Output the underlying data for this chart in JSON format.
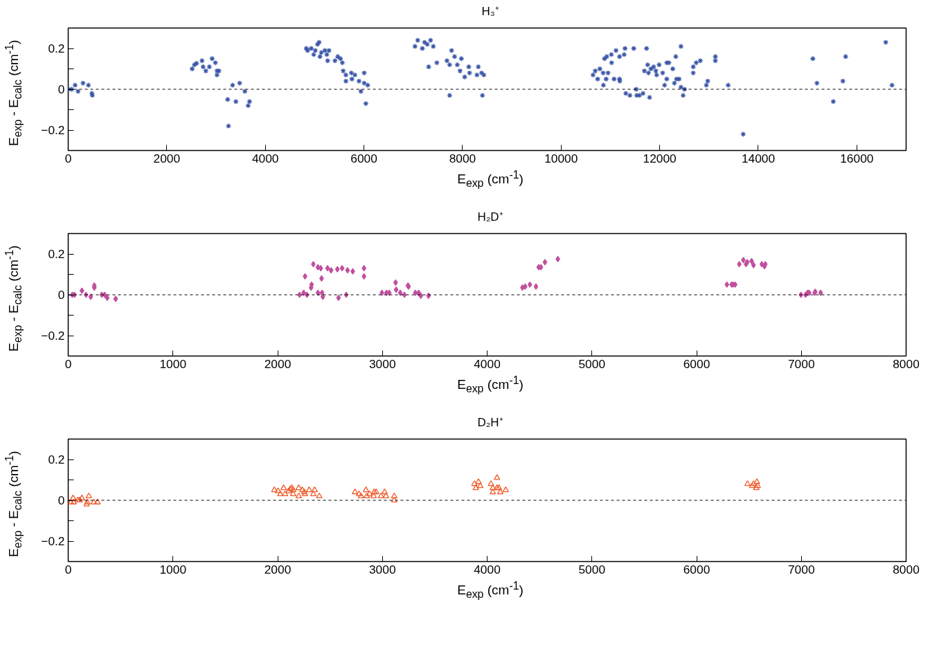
{
  "chart_data": [
    {
      "type": "scatter",
      "title": "H₃⁺",
      "xlabel": "E$_{exp}$ (cm$^{-1}$)",
      "ylabel": "E$_{exp}$ - E$_{calc}$ (cm$^{-1}$)",
      "marker": "cross",
      "grid": false,
      "xlim": [
        0,
        17000
      ],
      "xticks": [
        0,
        2000,
        4000,
        6000,
        8000,
        10000,
        12000,
        14000,
        16000
      ],
      "ylim": [
        -0.3,
        0.3
      ],
      "yticks": [
        {
          "value": -0.3,
          "label": null
        },
        -0.2,
        {
          "value": -0.1,
          "label": null
        },
        0,
        {
          "value": 0.1,
          "label": null
        },
        0.2,
        {
          "value": 0.3,
          "label": null
        }
      ],
      "ref_lines": [
        {
          "axis": "y",
          "value": 0,
          "color": "#000000",
          "line_style": "dashed"
        }
      ],
      "series": [
        {
          "color": "#3a56a8",
          "x": [
            0,
            70,
            140,
            200,
            300,
            410,
            480,
            490,
            2515,
            2560,
            2604,
            2715,
            2737,
            2792,
            2864,
            2920,
            2986,
            3019,
            3058,
            3019,
            3235,
            3252,
            3335,
            3402,
            3479,
            3584,
            3651,
            3679,
            4831,
            4859,
            4931,
            4981,
            5014,
            5058,
            5091,
            5108,
            5136,
            5208,
            5247,
            5263,
            5291,
            5413,
            5468,
            5523,
            5562,
            5579,
            5634,
            5634,
            5745,
            5756,
            5817,
            5900,
            5939,
            6005,
            6005,
            6039,
            6077,
            7036,
            7091,
            7185,
            7230,
            7285,
            7352,
            7407,
            7313,
            7479,
            7684,
            7739,
            7739,
            7778,
            7839,
            7894,
            7977,
            7950,
            8044,
            8127,
            8143,
            8293,
            8321,
            8387,
            8404,
            8432,
            10648,
            10693,
            10742,
            10787,
            10853,
            10859,
            10881,
            10925,
            10914,
            10953,
            11020,
            11025,
            11075,
            11114,
            11186,
            11186,
            11191,
            11280,
            11297,
            11474,
            11313,
            11396,
            11524,
            11535,
            11590,
            11662,
            11734,
            11795,
            11690,
            11756,
            11773,
            11823,
            11878,
            11922,
            11939,
            11989,
            12061,
            12100,
            12144,
            12144,
            12188,
            12266,
            12299,
            12327,
            12343,
            12393,
            12432,
            12432,
            12476,
            12504,
            12681,
            12681,
            12742,
            12825,
            12947,
            12975,
            13130,
            13130,
            13390,
            13695,
            15108,
            15191,
            15523,
            15717,
            15773,
            16587,
            16714
          ],
          "values": [
            0,
            0,
            0.02,
            -0.01,
            0.03,
            0.02,
            -0.02,
            -0.03,
            0.1,
            0.12,
            0.127,
            0.14,
            0.11,
            0.09,
            0.11,
            0.15,
            0.13,
            0.09,
            0.09,
            0.07,
            -0.05,
            -0.18,
            0.02,
            -0.06,
            0.03,
            -0.01,
            -0.08,
            -0.06,
            0.2,
            0.19,
            0.2,
            0.17,
            0.19,
            0.22,
            0.23,
            0.16,
            0.18,
            0.19,
            0.17,
            0.14,
            0.19,
            0.14,
            0.16,
            0.15,
            0.13,
            0.09,
            0.07,
            0.04,
            0.08,
            0.05,
            0.07,
            0.04,
            -0.01,
            0.08,
            0.03,
            -0.07,
            0.02,
            0.21,
            0.24,
            0.2,
            0.23,
            0.22,
            0.24,
            0.21,
            0.11,
            0.13,
            0.14,
            -0.03,
            0.12,
            0.19,
            0.16,
            0.12,
            0.15,
            0.09,
            0.06,
            0.11,
            0.08,
            0.07,
            0.11,
            0.08,
            -0.03,
            0.07,
            0.07,
            0.09,
            0.05,
            0.1,
            0.08,
            0.02,
            0.15,
            0.16,
            0.05,
            0.08,
            0.17,
            0.13,
            0.05,
            0.19,
            0.16,
            0.05,
            0.04,
            0.17,
            0.2,
            0.2,
            -0.02,
            -0.03,
            0,
            -0.03,
            -0.03,
            -0.02,
            0.2,
            -0.04,
            0.09,
            0.12,
            0.08,
            0.1,
            0.11,
            0.09,
            0.07,
            0.12,
            0.08,
            0.02,
            0.05,
            0.13,
            0.13,
            0.1,
            0.03,
            0.16,
            0.05,
            0.05,
            0.21,
            0.01,
            -0.03,
            0,
            0.11,
            0.08,
            0.13,
            0.14,
            0.02,
            0.04,
            0.16,
            0.14,
            0.02,
            -0.22,
            0.15,
            0.03,
            -0.06,
            0.04,
            0.16,
            0.23,
            0.02
          ]
        }
      ]
    },
    {
      "type": "scatter",
      "title": "H₂D⁺",
      "xlabel": "E$_{exp}$ (cm$^{-1}$)",
      "ylabel": "E$_{exp}$ - E$_{calc}$ (cm$^{-1}$)",
      "marker": "diamond",
      "grid": false,
      "xlim": [
        0,
        8000
      ],
      "xticks": [
        0,
        1000,
        2000,
        3000,
        4000,
        5000,
        6000,
        7000,
        8000
      ],
      "ylim": [
        -0.3,
        0.3
      ],
      "yticks": [
        {
          "value": -0.3,
          "label": null
        },
        -0.2,
        {
          "value": -0.1,
          "label": null
        },
        0,
        {
          "value": 0.1,
          "label": null
        },
        0.2,
        {
          "value": 0.3,
          "label": null
        }
      ],
      "ref_lines": [
        {
          "axis": "y",
          "value": 0,
          "color": "#000000",
          "line_style": "dashed"
        }
      ],
      "series": [
        {
          "color": "#c0509f",
          "x": [
            39,
            60,
            131,
            170,
            215,
            249,
            249,
            320,
            348,
            372,
            453,
            2209,
            2248,
            2261,
            2279,
            2319,
            2324,
            2340,
            2384,
            2384,
            2411,
            2419,
            2424,
            2431,
            2476,
            2510,
            2570,
            2581,
            2615,
            2654,
            2667,
            2717,
            2824,
            2824,
            2995,
            3039,
            3065,
            3126,
            3131,
            3170,
            3210,
            3244,
            3249,
            3314,
            3346,
            3367,
            3440,
            4337,
            4363,
            4408,
            4466,
            4492,
            4513,
            4552,
            4675,
            6289,
            6334,
            6347,
            6368,
            6407,
            6446,
            6472,
            6483,
            6525,
            6543,
            6622,
            6648,
            6656,
            6996,
            7040,
            7059,
            7074,
            7127,
            7132,
            7184
          ],
          "values": [
            0,
            0,
            0.02,
            0,
            -0.01,
            0.045,
            0.035,
            0,
            0,
            -0.015,
            -0.02,
            0,
            0.01,
            0.09,
            0,
            0.035,
            0.05,
            0.15,
            0.01,
            0.135,
            0.13,
            0.08,
            0.01,
            -0.01,
            0.13,
            0.12,
            0.125,
            -0.015,
            0.13,
            0,
            0.12,
            0.115,
            0.13,
            0.09,
            0.01,
            0.01,
            0.01,
            0.06,
            0.025,
            0.01,
            0,
            0.045,
            0.04,
            0.01,
            0.01,
            -0.005,
            -0.005,
            0.035,
            0.04,
            0.05,
            0.04,
            0.135,
            0.135,
            0.16,
            0.175,
            0.05,
            0.05,
            0.05,
            0.05,
            0.15,
            0.17,
            0.15,
            0.16,
            0.165,
            0.145,
            0.15,
            0.14,
            0.15,
            0,
            0,
            0.01,
            0.01,
            0.01,
            0.015,
            0.01
          ]
        }
      ]
    },
    {
      "type": "scatter",
      "title": "D₂H⁺",
      "xlabel": "E$_{exp}$ (cm$^{-1}$)",
      "ylabel": "E$_{exp}$ - E$_{calc}$ (cm$^{-1}$)",
      "marker": "triangle",
      "grid": false,
      "xlim": [
        0,
        8000
      ],
      "xticks": [
        0,
        1000,
        2000,
        3000,
        4000,
        5000,
        6000,
        7000,
        8000
      ],
      "ylim": [
        -0.3,
        0.3
      ],
      "yticks": [
        {
          "value": -0.3,
          "label": null
        },
        -0.2,
        {
          "value": -0.1,
          "label": null
        },
        0,
        {
          "value": 0.1,
          "label": null
        },
        0.2,
        {
          "value": 0.3,
          "label": null
        }
      ],
      "ref_lines": [
        {
          "axis": "y",
          "value": 0,
          "color": "#000000",
          "line_style": "dashed"
        }
      ],
      "series": [
        {
          "color": "#f05a28",
          "x": [
            26,
            47,
            52,
            92,
            110,
            131,
            176,
            183,
            197,
            244,
            280,
            1968,
            2004,
            2025,
            2057,
            2070,
            2104,
            2122,
            2135,
            2148,
            2148,
            2201,
            2201,
            2235,
            2253,
            2261,
            2300,
            2340,
            2353,
            2397,
            2738,
            2777,
            2796,
            2843,
            2851,
            2877,
            2916,
            2921,
            2940,
            2987,
            3021,
            3034,
            3113,
            3113,
            3878,
            3891,
            3917,
            3935,
            4036,
            4054,
            4054,
            4094,
            4094,
            4112,
            4125,
            4177,
            6486,
            6530,
            6543,
            6570,
            6575,
            6583
          ],
          "values": [
            -0.01,
            0.01,
            -0.01,
            0,
            0,
            0.01,
            -0.02,
            -0.01,
            0.02,
            -0.01,
            -0.01,
            0.05,
            0.045,
            0.03,
            0.06,
            0.03,
            0.045,
            0.055,
            0.06,
            0.03,
            0.05,
            0.06,
            0.02,
            0.05,
            0.04,
            0.03,
            0.05,
            0.03,
            0.05,
            0.02,
            0.04,
            0.03,
            0.02,
            0.05,
            0.02,
            0.03,
            0.02,
            0.04,
            0.04,
            0.02,
            0.04,
            0.02,
            0.02,
            0,
            0.08,
            0.06,
            0.09,
            0.07,
            0.08,
            0.06,
            0.04,
            0.11,
            0.06,
            0.06,
            0.04,
            0.05,
            0.08,
            0.07,
            0.08,
            0.06,
            0.09,
            0.07
          ]
        }
      ]
    }
  ]
}
